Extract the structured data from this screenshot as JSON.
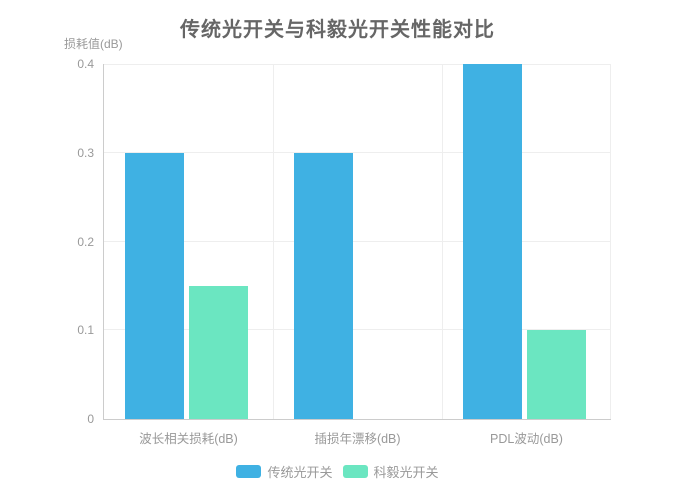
{
  "chart_data": {
    "type": "bar",
    "title": "传统光开关与科毅光开关性能对比",
    "ylabel": "损耗值(dB)",
    "xlabel": "",
    "categories": [
      "波长相关损耗(dB)",
      "插损年漂移(dB)",
      "PDL波动(dB)"
    ],
    "series": [
      {
        "name": "传统光开关",
        "color": "#3fb1e3",
        "values": [
          0.3,
          0.3,
          0.4
        ]
      },
      {
        "name": "科毅光开关",
        "color": "#6be6c1",
        "values": [
          0.15,
          0,
          0.1
        ]
      }
    ],
    "y_ticks": [
      0,
      0.1,
      0.2,
      0.3,
      0.4
    ],
    "ylim": [
      0,
      0.4
    ],
    "grid": true,
    "legend_position": "bottom"
  },
  "palette": {
    "title_color": "#666666",
    "label_color": "#999999",
    "grid_color": "#eeeeee",
    "axis_color": "#cccccc",
    "background": "#ffffff"
  }
}
